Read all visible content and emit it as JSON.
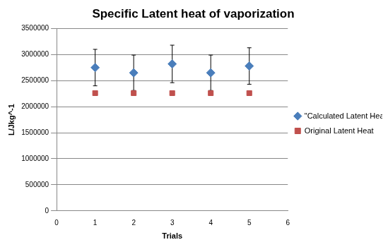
{
  "chart_data": {
    "type": "scatter",
    "title": "Specific Latent heat of vaporization",
    "x_label": "Trials",
    "y_label": "L/Jkg^-1",
    "x": [
      1,
      2,
      3,
      4,
      5
    ],
    "series": [
      {
        "name": "\"Calculated Latent Heat\"",
        "color": "#4a7ebb",
        "marker": "diamond",
        "values": [
          2750000,
          2650000,
          2820000,
          2650000,
          2780000
        ],
        "yerr": [
          350000,
          340000,
          360000,
          340000,
          350000
        ]
      },
      {
        "name": "Original Latent Heat",
        "color": "#c0504d",
        "marker": "square",
        "values": [
          2260000,
          2260000,
          2260000,
          2260000,
          2260000
        ]
      }
    ],
    "xlim": [
      0,
      6
    ],
    "xticks": [
      0,
      1,
      2,
      3,
      4,
      5,
      6
    ],
    "ylim": [
      0,
      3500000
    ],
    "yticks": [
      0,
      500000,
      1000000,
      1500000,
      2000000,
      2500000,
      3000000,
      3500000
    ],
    "grid": true,
    "legend": "right"
  }
}
